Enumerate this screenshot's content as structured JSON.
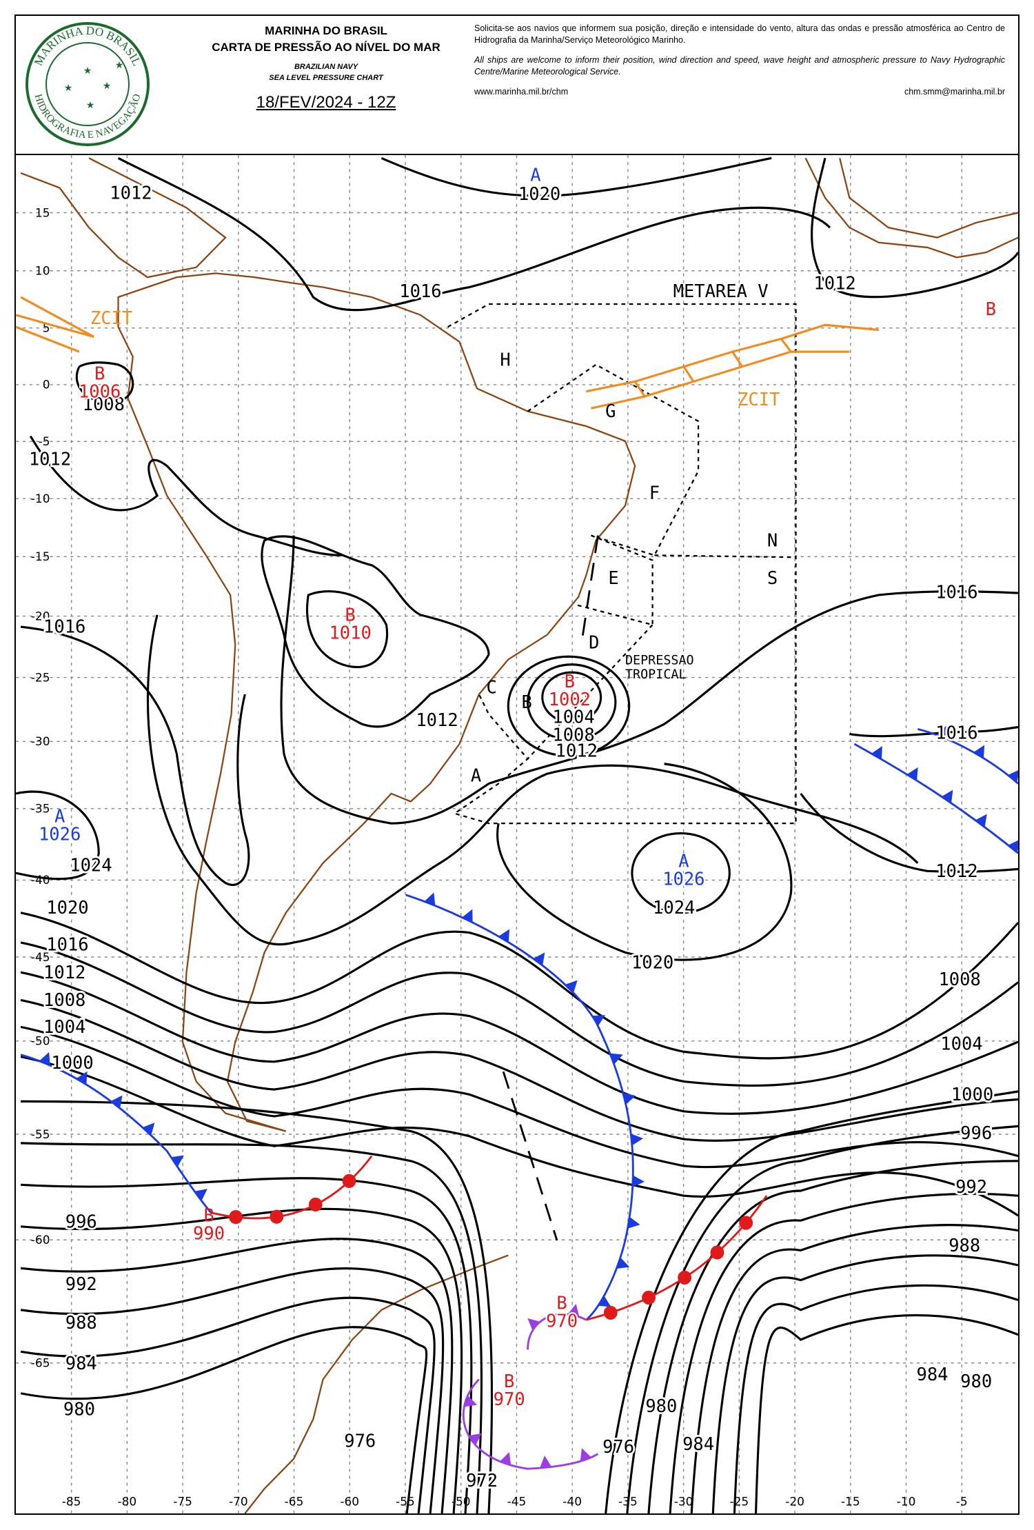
{
  "header": {
    "logo_top": "MARINHA DO BRASIL",
    "logo_bottom": "HIDROGRAFIA E NAVEGAÇÃO",
    "org_pt": "MARINHA DO BRASIL",
    "title_pt": "CARTA DE PRESSÃO AO NÍVEL DO MAR",
    "org_en": "BRAZILIAN NAVY",
    "title_en": "SEA LEVEL PRESSURE CHART",
    "date": "18/FEV/2024 - 12Z",
    "notice_pt": "Solicita-se aos navios que informem sua posição, direção e intensidade do vento, altura das ondas e pressão atmosférica ao Centro de Hidrografia da Marinha/Serviço Meteorológico Marinho.",
    "notice_en": "All ships are welcome to inform their position, wind direction and speed, wave height and atmospheric pressure to Navy Hydrographic Centre/Marine Meteorological Service.",
    "url": "www.marinha.mil.br/chm",
    "email": "chm.smm@marinha.mil.br"
  },
  "map": {
    "lon_ticks": [
      -85,
      -80,
      -75,
      -70,
      -65,
      -60,
      -55,
      -50,
      -45,
      -40,
      -35,
      -30,
      -25,
      -20,
      -15,
      -10,
      -5
    ],
    "lat_ticks": [
      15,
      10,
      5,
      0,
      -5,
      -10,
      -15,
      -20,
      -25,
      -30,
      -35,
      -40,
      -45,
      -50,
      -55,
      -60,
      -65
    ],
    "metarea": "METAREA V",
    "areas": [
      "H",
      "G",
      "F",
      "E",
      "D",
      "C",
      "B",
      "A",
      "N",
      "S"
    ],
    "zcit_labels": [
      "ZCIT",
      "ZCIT"
    ],
    "depression_label": [
      "DEPRESSAO",
      "TROPICAL"
    ],
    "isobar_labels": [
      1012,
      1020,
      1016,
      1012,
      1008,
      1012,
      1016,
      1016,
      1012,
      1004,
      1008,
      1012,
      1016,
      1024,
      1012,
      1020,
      1024,
      1016,
      1020,
      1012,
      1008,
      1008,
      1004,
      1004,
      1000,
      1000,
      996,
      996,
      992,
      988,
      992,
      988,
      984,
      984,
      980,
      980,
      980,
      976,
      984,
      976,
      972
    ],
    "systems": [
      {
        "symbol": "A"
      },
      {
        "symbol": "B",
        "pressure": 1006
      },
      {
        "symbol": "B",
        "pressure": 1010
      },
      {
        "symbol": "B",
        "pressure": 1002
      },
      {
        "symbol": "A",
        "pressure": 1026
      },
      {
        "symbol": "A",
        "pressure": 1026
      },
      {
        "symbol": "B",
        "pressure": 990
      },
      {
        "symbol": "B",
        "pressure": 970
      },
      {
        "symbol": "B",
        "pressure": 970
      },
      {
        "symbol": "B"
      }
    ]
  }
}
